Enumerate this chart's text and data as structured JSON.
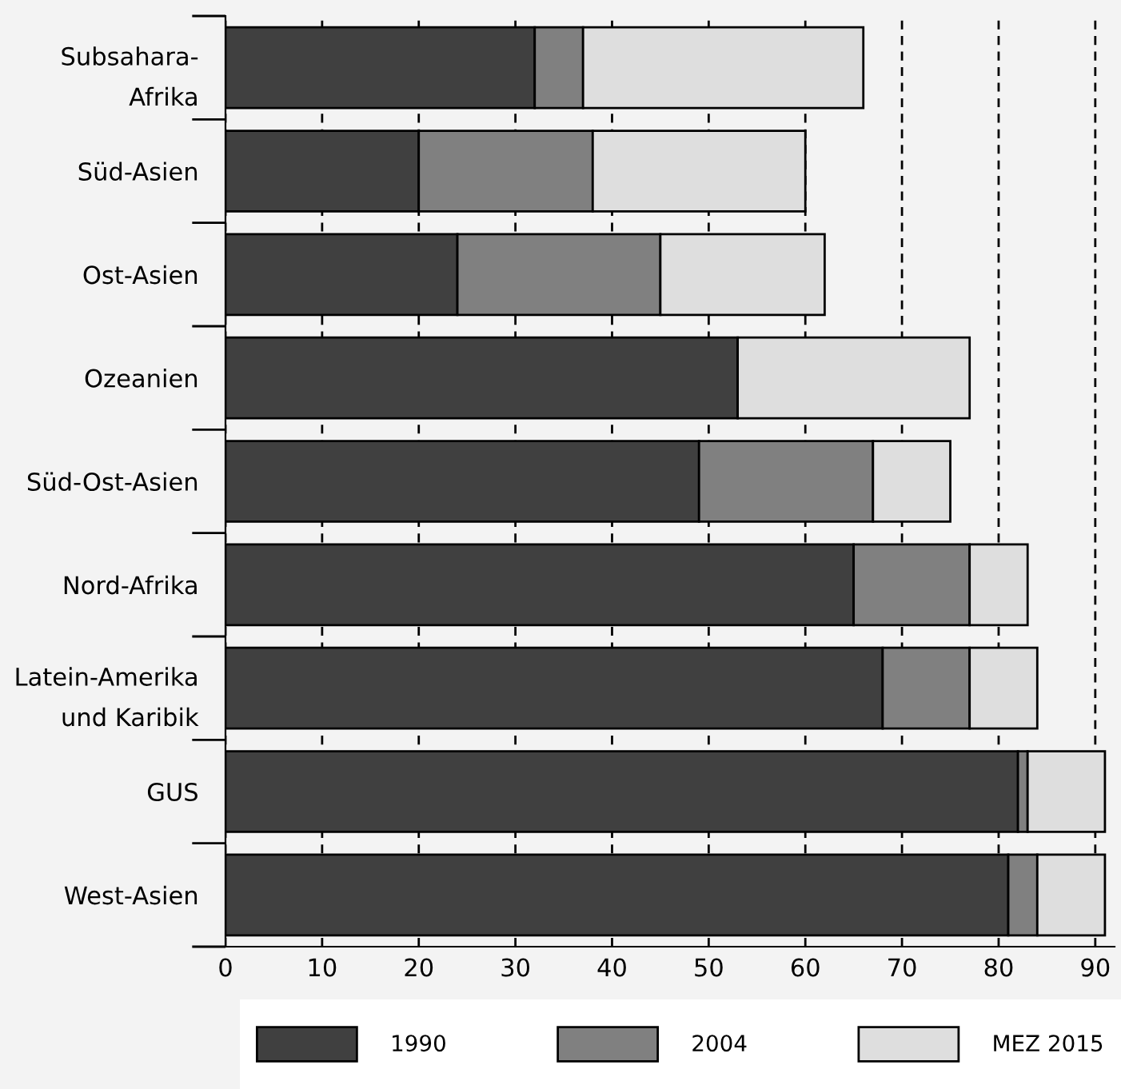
{
  "chart_data": {
    "type": "bar",
    "orientation": "horizontal",
    "stacked": true,
    "categories": [
      "Subsahara-\nAfrika",
      "Süd-Asien",
      "Ost-Asien",
      "Ozeanien",
      "Süd-Ost-Asien",
      "Nord-Afrika",
      "Latein-Amerika\nund Karibik",
      "GUS",
      "West-Asien"
    ],
    "series": [
      {
        "name": "1990",
        "color": "#404040",
        "values": [
          32,
          20,
          24,
          53,
          49,
          65,
          68,
          82,
          81
        ]
      },
      {
        "name": "2004",
        "color": "#808080",
        "values": [
          5,
          18,
          21,
          0,
          18,
          12,
          9,
          1,
          3
        ]
      },
      {
        "name": "MEZ 2015",
        "color": "#dedede",
        "values": [
          29,
          22,
          17,
          24,
          8,
          6,
          7,
          8,
          7
        ]
      }
    ],
    "xlim": [
      0,
      92
    ],
    "xticks": [
      0,
      10,
      20,
      30,
      40,
      50,
      60,
      70,
      80,
      90
    ],
    "grid": "x",
    "legend": "bottom"
  }
}
